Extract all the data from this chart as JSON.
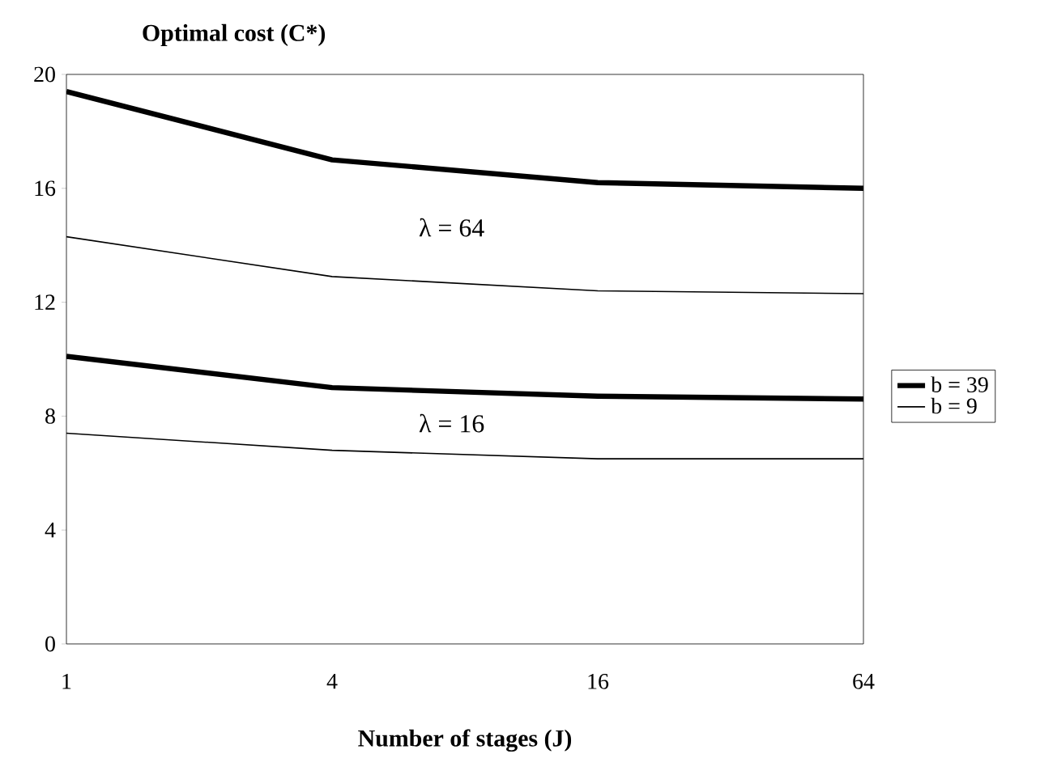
{
  "chart_data": {
    "type": "line",
    "xlabel": "Number of stages (J)",
    "ylabel": "Optimal cost (C*)",
    "categories": [
      "1",
      "4",
      "16",
      "64"
    ],
    "series": [
      {
        "name": "b = 39",
        "color": "#000000",
        "values": [
          19.4,
          17.0,
          16.2,
          16.0
        ]
      },
      {
        "name": "b = 9",
        "color": "#000000",
        "values": [
          14.3,
          12.9,
          12.4,
          12.3
        ]
      },
      {
        "color": "#000000",
        "values": [
          10.1,
          9.0,
          8.7,
          8.6
        ]
      },
      {
        "color": "#000000",
        "values": [
          7.4,
          6.8,
          6.5,
          6.5
        ]
      }
    ],
    "ylim": [
      0,
      20
    ],
    "yticks": [
      0,
      4,
      8,
      12,
      16,
      20
    ],
    "annotations": [
      "λ = 64",
      "λ = 16"
    ],
    "legend": "right",
    "grid": false,
    "marker": "none",
    "line_style": "solid"
  }
}
